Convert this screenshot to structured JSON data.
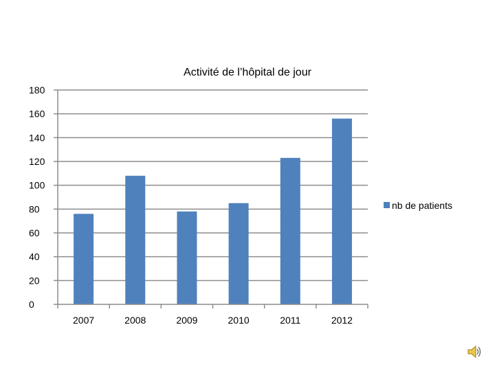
{
  "chart_data": {
    "type": "bar",
    "title": "Activité de l’hôpital de jour",
    "categories": [
      "2007",
      "2008",
      "2009",
      "2010",
      "2011",
      "2012"
    ],
    "series": [
      {
        "name": "nb de patients",
        "values": [
          76,
          108,
          78,
          85,
          123,
          156
        ],
        "color": "#4f81bd"
      }
    ],
    "ylim": [
      0,
      180
    ],
    "yticks": [
      0,
      20,
      40,
      60,
      80,
      100,
      120,
      140,
      160,
      180
    ],
    "grid": true,
    "legend_position": "right"
  },
  "icons": {
    "speaker": "speaker-icon"
  }
}
